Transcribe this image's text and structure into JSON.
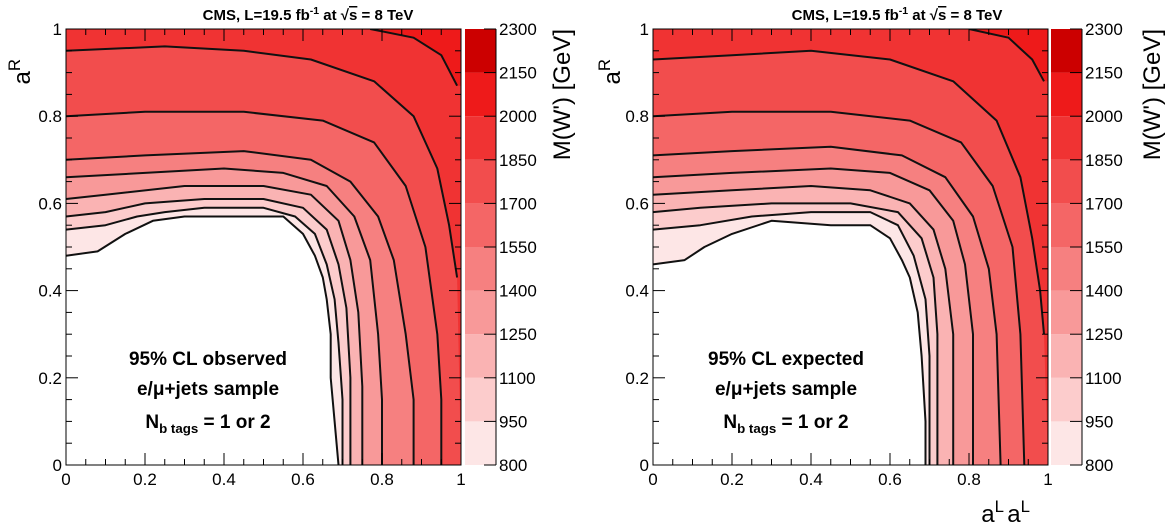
{
  "colors": {
    "z_bands": [
      "#fde6e6",
      "#fccccc",
      "#fab3b3",
      "#f89999",
      "#f68080",
      "#f46666",
      "#f24d4d",
      "#f03333",
      "#ee1a1a",
      "#cc0000"
    ],
    "contour_line": "#111111"
  },
  "chart_data": [
    {
      "type": "heatmap",
      "title": "CMS, L=19.5 fb",
      "title_sup": "-1",
      "title_energy_prefix": " at ",
      "title_sqrt": "s",
      "title_energy": " = 8 TeV",
      "xlabel": "a",
      "xlabel_sup": "L",
      "ylabel": "a",
      "ylabel_sup": "R",
      "zlabel": "M(W') [GeV]",
      "xlim": [
        0,
        1
      ],
      "ylim": [
        0,
        1
      ],
      "zlim": [
        800,
        2300
      ],
      "x_ticks": [
        "0",
        "0.2",
        "0.4",
        "0.6",
        "0.8",
        "1"
      ],
      "y_ticks": [
        "0",
        "0.2",
        "0.4",
        "0.6",
        "0.8",
        "1"
      ],
      "z_ticks": [
        "800",
        "950",
        "1100",
        "1250",
        "1400",
        "1550",
        "1700",
        "1850",
        "2000",
        "2150",
        "2300"
      ],
      "annotation": {
        "line1": "95% CL observed",
        "line2_pre": "e/",
        "line2_mu": "μ",
        "line2_post": "+jets sample",
        "line3_pre": "N",
        "line3_sub": "b tags",
        "line3_post": " = 1 or 2"
      },
      "contours": [
        {
          "level": 800,
          "points": [
            [
              0.0,
              0.48
            ],
            [
              0.08,
              0.49
            ],
            [
              0.15,
              0.53
            ],
            [
              0.22,
              0.56
            ],
            [
              0.3,
              0.57
            ],
            [
              0.45,
              0.57
            ],
            [
              0.55,
              0.57
            ],
            [
              0.6,
              0.53
            ],
            [
              0.63,
              0.48
            ],
            [
              0.65,
              0.43
            ],
            [
              0.66,
              0.38
            ],
            [
              0.67,
              0.3
            ],
            [
              0.67,
              0.2
            ],
            [
              0.68,
              0.1
            ],
            [
              0.69,
              0.0
            ]
          ]
        },
        {
          "level": 950,
          "points": [
            [
              0.0,
              0.54
            ],
            [
              0.1,
              0.55
            ],
            [
              0.18,
              0.57
            ],
            [
              0.25,
              0.58
            ],
            [
              0.35,
              0.59
            ],
            [
              0.5,
              0.59
            ],
            [
              0.58,
              0.57
            ],
            [
              0.63,
              0.53
            ],
            [
              0.66,
              0.46
            ],
            [
              0.68,
              0.38
            ],
            [
              0.69,
              0.28
            ],
            [
              0.7,
              0.15
            ],
            [
              0.7,
              0.0
            ]
          ]
        },
        {
          "level": 1100,
          "points": [
            [
              0.0,
              0.57
            ],
            [
              0.1,
              0.58
            ],
            [
              0.2,
              0.6
            ],
            [
              0.35,
              0.61
            ],
            [
              0.5,
              0.61
            ],
            [
              0.6,
              0.59
            ],
            [
              0.66,
              0.54
            ],
            [
              0.69,
              0.46
            ],
            [
              0.71,
              0.36
            ],
            [
              0.72,
              0.2
            ],
            [
              0.72,
              0.0
            ]
          ]
        },
        {
          "level": 1250,
          "points": [
            [
              0.0,
              0.61
            ],
            [
              0.1,
              0.62
            ],
            [
              0.3,
              0.64
            ],
            [
              0.5,
              0.64
            ],
            [
              0.62,
              0.62
            ],
            [
              0.69,
              0.56
            ],
            [
              0.72,
              0.47
            ],
            [
              0.74,
              0.35
            ],
            [
              0.75,
              0.18
            ],
            [
              0.75,
              0.0
            ]
          ]
        },
        {
          "level": 1400,
          "points": [
            [
              0.0,
              0.66
            ],
            [
              0.2,
              0.67
            ],
            [
              0.4,
              0.68
            ],
            [
              0.55,
              0.67
            ],
            [
              0.66,
              0.64
            ],
            [
              0.73,
              0.57
            ],
            [
              0.77,
              0.47
            ],
            [
              0.79,
              0.3
            ],
            [
              0.8,
              0.15
            ],
            [
              0.8,
              0.0
            ]
          ]
        },
        {
          "level": 1550,
          "points": [
            [
              0.0,
              0.7
            ],
            [
              0.2,
              0.71
            ],
            [
              0.45,
              0.72
            ],
            [
              0.62,
              0.7
            ],
            [
              0.72,
              0.65
            ],
            [
              0.79,
              0.57
            ],
            [
              0.83,
              0.47
            ],
            [
              0.86,
              0.3
            ],
            [
              0.88,
              0.15
            ],
            [
              0.88,
              0.0
            ]
          ]
        },
        {
          "level": 1700,
          "points": [
            [
              0.0,
              0.8
            ],
            [
              0.2,
              0.81
            ],
            [
              0.45,
              0.81
            ],
            [
              0.65,
              0.79
            ],
            [
              0.78,
              0.74
            ],
            [
              0.86,
              0.64
            ],
            [
              0.91,
              0.5
            ],
            [
              0.94,
              0.3
            ],
            [
              0.95,
              0.15
            ],
            [
              0.95,
              0.0
            ]
          ]
        },
        {
          "level": 1850,
          "points": [
            [
              0.0,
              0.95
            ],
            [
              0.25,
              0.96
            ],
            [
              0.45,
              0.95
            ],
            [
              0.62,
              0.93
            ],
            [
              0.78,
              0.88
            ],
            [
              0.88,
              0.8
            ],
            [
              0.94,
              0.68
            ],
            [
              0.97,
              0.55
            ],
            [
              0.99,
              0.43
            ]
          ]
        },
        {
          "level": 2000,
          "points": [
            [
              0.77,
              1.0
            ],
            [
              0.88,
              0.98
            ],
            [
              0.95,
              0.94
            ],
            [
              0.99,
              0.87
            ]
          ]
        }
      ]
    },
    {
      "type": "heatmap",
      "title": "CMS, L=19.5 fb",
      "title_sup": "-1",
      "title_energy_prefix": " at ",
      "title_sqrt": "s",
      "title_energy": " = 8 TeV",
      "xlabel": "a",
      "xlabel_sup": "L",
      "ylabel": "a",
      "ylabel_sup": "R",
      "zlabel": "M(W') [GeV]",
      "xlim": [
        0,
        1
      ],
      "ylim": [
        0,
        1
      ],
      "zlim": [
        800,
        2300
      ],
      "x_ticks": [
        "0",
        "0.2",
        "0.4",
        "0.6",
        "0.8",
        "1"
      ],
      "y_ticks": [
        "0",
        "0.2",
        "0.4",
        "0.6",
        "0.8",
        "1"
      ],
      "z_ticks": [
        "800",
        "950",
        "1100",
        "1250",
        "1400",
        "1550",
        "1700",
        "1850",
        "2000",
        "2150",
        "2300"
      ],
      "annotation": {
        "line1": "95% CL expected",
        "line2_pre": "e/",
        "line2_mu": "μ",
        "line2_post": "+jets sample",
        "line3_pre": "N",
        "line3_sub": "b tags",
        "line3_post": " = 1 or 2"
      },
      "contours": [
        {
          "level": 800,
          "points": [
            [
              0.0,
              0.46
            ],
            [
              0.08,
              0.47
            ],
            [
              0.13,
              0.5
            ],
            [
              0.2,
              0.53
            ],
            [
              0.3,
              0.56
            ],
            [
              0.45,
              0.55
            ],
            [
              0.55,
              0.55
            ],
            [
              0.6,
              0.52
            ],
            [
              0.63,
              0.47
            ],
            [
              0.65,
              0.43
            ],
            [
              0.67,
              0.35
            ],
            [
              0.68,
              0.25
            ],
            [
              0.69,
              0.1
            ],
            [
              0.69,
              0.0
            ]
          ]
        },
        {
          "level": 950,
          "points": [
            [
              0.0,
              0.54
            ],
            [
              0.12,
              0.55
            ],
            [
              0.25,
              0.57
            ],
            [
              0.4,
              0.58
            ],
            [
              0.55,
              0.58
            ],
            [
              0.62,
              0.55
            ],
            [
              0.66,
              0.48
            ],
            [
              0.69,
              0.38
            ],
            [
              0.7,
              0.25
            ],
            [
              0.7,
              0.0
            ]
          ]
        },
        {
          "level": 1100,
          "points": [
            [
              0.0,
              0.58
            ],
            [
              0.12,
              0.59
            ],
            [
              0.3,
              0.6
            ],
            [
              0.5,
              0.6
            ],
            [
              0.62,
              0.58
            ],
            [
              0.68,
              0.52
            ],
            [
              0.71,
              0.43
            ],
            [
              0.72,
              0.3
            ],
            [
              0.72,
              0.0
            ]
          ]
        },
        {
          "level": 1250,
          "points": [
            [
              0.0,
              0.62
            ],
            [
              0.2,
              0.63
            ],
            [
              0.4,
              0.64
            ],
            [
              0.55,
              0.63
            ],
            [
              0.65,
              0.6
            ],
            [
              0.71,
              0.54
            ],
            [
              0.74,
              0.45
            ],
            [
              0.76,
              0.3
            ],
            [
              0.76,
              0.0
            ]
          ]
        },
        {
          "level": 1400,
          "points": [
            [
              0.0,
              0.66
            ],
            [
              0.2,
              0.67
            ],
            [
              0.45,
              0.68
            ],
            [
              0.6,
              0.67
            ],
            [
              0.7,
              0.63
            ],
            [
              0.76,
              0.56
            ],
            [
              0.79,
              0.46
            ],
            [
              0.81,
              0.3
            ],
            [
              0.81,
              0.0
            ]
          ]
        },
        {
          "level": 1550,
          "points": [
            [
              0.0,
              0.71
            ],
            [
              0.2,
              0.72
            ],
            [
              0.45,
              0.73
            ],
            [
              0.63,
              0.71
            ],
            [
              0.74,
              0.66
            ],
            [
              0.81,
              0.57
            ],
            [
              0.85,
              0.45
            ],
            [
              0.87,
              0.3
            ],
            [
              0.88,
              0.0
            ]
          ]
        },
        {
          "level": 1700,
          "points": [
            [
              0.0,
              0.8
            ],
            [
              0.2,
              0.81
            ],
            [
              0.45,
              0.81
            ],
            [
              0.65,
              0.79
            ],
            [
              0.78,
              0.74
            ],
            [
              0.86,
              0.64
            ],
            [
              0.91,
              0.5
            ],
            [
              0.93,
              0.3
            ],
            [
              0.94,
              0.0
            ]
          ]
        },
        {
          "level": 1850,
          "points": [
            [
              0.0,
              0.93
            ],
            [
              0.2,
              0.94
            ],
            [
              0.4,
              0.95
            ],
            [
              0.6,
              0.93
            ],
            [
              0.76,
              0.88
            ],
            [
              0.87,
              0.79
            ],
            [
              0.93,
              0.66
            ],
            [
              0.96,
              0.52
            ],
            [
              0.98,
              0.4
            ],
            [
              0.99,
              0.3
            ]
          ]
        },
        {
          "level": 2000,
          "points": [
            [
              0.8,
              1.0
            ],
            [
              0.9,
              0.98
            ],
            [
              0.96,
              0.93
            ],
            [
              0.99,
              0.88
            ]
          ]
        }
      ]
    }
  ]
}
